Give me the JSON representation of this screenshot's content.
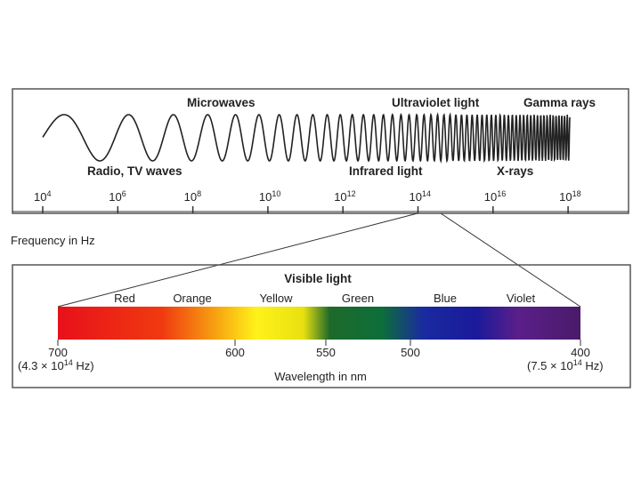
{
  "spectrum": {
    "wave_labels_top": [
      "Microwaves",
      "Ultraviolet light",
      "Gamma rays"
    ],
    "wave_labels_bottom": [
      "Radio, TV waves",
      "Infrared light",
      "X-rays"
    ],
    "frequency_ticks": [
      {
        "base": "10",
        "exp": "4"
      },
      {
        "base": "10",
        "exp": "6"
      },
      {
        "base": "10",
        "exp": "8"
      },
      {
        "base": "10",
        "exp": "10"
      },
      {
        "base": "10",
        "exp": "12"
      },
      {
        "base": "10",
        "exp": "14"
      },
      {
        "base": "10",
        "exp": "16"
      },
      {
        "base": "10",
        "exp": "18"
      }
    ],
    "frequency_axis_label": "Frequency in Hz"
  },
  "visible": {
    "title": "Visible light",
    "colors": [
      "Red",
      "Orange",
      "Yellow",
      "Green",
      "Blue",
      "Violet"
    ],
    "wavelength_ticks": [
      "700",
      "600",
      "550",
      "500",
      "400"
    ],
    "left_frequency": {
      "prefix": "(4.3 × 10",
      "exp": "14",
      "suffix": " Hz)"
    },
    "right_frequency": {
      "prefix": "(7.5 × 10",
      "exp": "14",
      "suffix": " Hz)"
    },
    "axis_label": "Wavelength in nm"
  }
}
